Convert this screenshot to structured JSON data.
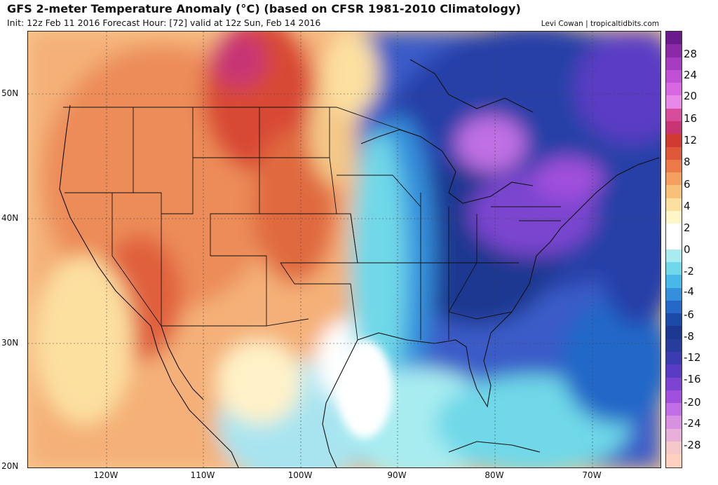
{
  "header": {
    "title": "GFS 2-meter Temperature Anomaly (°C) (based on CFSR 1981-2010 Climatology)",
    "subtitle": "Init: 12z Feb 11 2016   Forecast Hour: [72]   valid at 12z Sun, Feb 14 2016",
    "credit": "Levi Cowan | tropicaltidbits.com"
  },
  "axes": {
    "lat_labels": [
      "50N",
      "40N",
      "30N",
      "20N"
    ],
    "lon_labels": [
      "120W",
      "110W",
      "100W",
      "90W",
      "80W",
      "70W"
    ]
  },
  "colorbar": {
    "labels": [
      "28",
      "24",
      "20",
      "16",
      "12",
      "8",
      "6",
      "4",
      "2",
      "0",
      "-2",
      "-4",
      "-6",
      "-8",
      "-12",
      "-16",
      "-20",
      "-24",
      "-28"
    ],
    "colors": [
      "#6a1a8a",
      "#8a2aa6",
      "#a63cc0",
      "#c050d4",
      "#d868e2",
      "#e888e8",
      "#d84c9c",
      "#c83474",
      "#d03a30",
      "#e0583a",
      "#ec7a48",
      "#f4a060",
      "#f8c078",
      "#fce0a0",
      "#fff6c8",
      "#ffffff",
      "#ffffff",
      "#a8ecf0",
      "#70d8e8",
      "#48b8e8",
      "#3490dc",
      "#2468c8",
      "#1c4aa8",
      "#1c3890",
      "#283c9c",
      "#3a3cb0",
      "#5a3cc4",
      "#7c44d0",
      "#a050dc",
      "#c070e4",
      "#d890e0",
      "#e8b0d8",
      "#f4c8c8",
      "#ffd0c0"
    ]
  }
}
